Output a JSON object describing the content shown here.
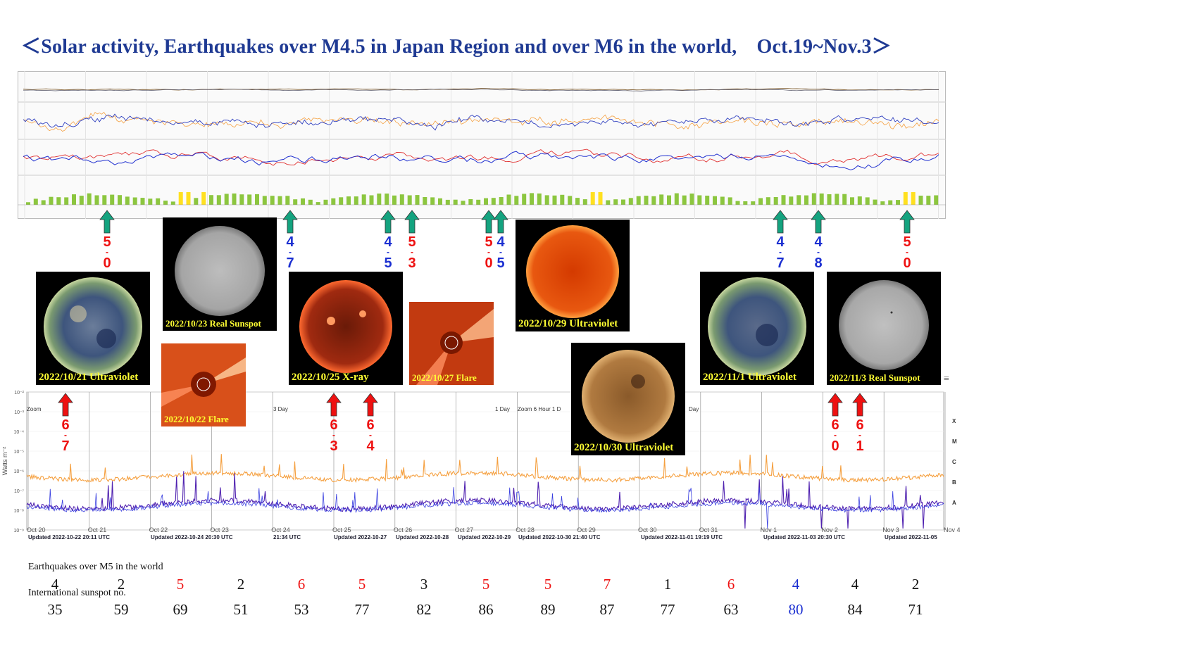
{
  "title": "＜Solar activity, Earthquakes over M4.5 in Japan Region and over M6 in the world,　Oct.19~Nov.3＞",
  "colors": {
    "title": "#1f3a93",
    "japan_arrow": "#14a37f",
    "world_arrow": "#ee1111",
    "japan_mag": "#1b2fd1",
    "world_mag": "#ee1111",
    "xray_long": "#f5a040",
    "xray_short": "#5022b0",
    "kp_green": "#8cc63f",
    "kp_yellow": "#ffe020"
  },
  "thumbnails": [
    {
      "caption": "2022/10/21 Ultraviolet",
      "type": "uv-blue"
    },
    {
      "caption": "2022/10/23 Real Sunspot",
      "type": "white"
    },
    {
      "caption": "2022/10/22 Flare",
      "type": "coronagraph"
    },
    {
      "caption": "2022/10/25 X-ray",
      "type": "xray"
    },
    {
      "caption": "2022/10/27 Flare",
      "type": "coronagraph"
    },
    {
      "caption": "2022/10/29 Ultraviolet",
      "type": "uv-red"
    },
    {
      "caption": "2022/10/30 Ultraviolet",
      "type": "uv-brown"
    },
    {
      "caption": "2022/11/1 Ultraviolet",
      "type": "uv-blue"
    },
    {
      "caption": "2022/11/3 Real Sunspot",
      "type": "white"
    }
  ],
  "japan_quakes": [
    {
      "d1": "5",
      "d2": "0",
      "color": "world"
    },
    {
      "d1": "4",
      "d2": "7",
      "color": "japan"
    },
    {
      "d1": "4",
      "d2": "5",
      "color": "japan"
    },
    {
      "d1": "5",
      "d2": "3",
      "color": "world"
    },
    {
      "d1": "5",
      "d2": "0",
      "color": "world"
    },
    {
      "d1": "4",
      "d2": "5",
      "color": "japan"
    },
    {
      "d1": "4",
      "d2": "7",
      "color": "japan"
    },
    {
      "d1": "4",
      "d2": "8",
      "color": "japan"
    },
    {
      "d1": "5",
      "d2": "0",
      "color": "world"
    }
  ],
  "world_quakes": [
    {
      "d1": "6",
      "d2": "7"
    },
    {
      "d1": "6",
      "d2": "3"
    },
    {
      "d1": "6",
      "d2": "4"
    },
    {
      "d1": "6",
      "d2": "0"
    },
    {
      "d1": "6",
      "d2": "1"
    }
  ],
  "xray_axis": {
    "ylabel": "Watts m⁻²",
    "y_ticks": [
      "10⁻²",
      "10⁻³",
      "10⁻⁴",
      "10⁻⁵",
      "10⁻⁶",
      "10⁻⁷",
      "10⁻⁸",
      "10⁻⁹"
    ],
    "class_labels": [
      "X",
      "M",
      "C",
      "B",
      "A"
    ],
    "x_ticks": [
      "Oct 20",
      "Oct 21",
      "Oct 22",
      "Oct 23",
      "Oct 24",
      "Oct 25",
      "Oct 26",
      "Oct 27",
      "Oct 28",
      "Oct 29",
      "Oct 30",
      "Oct 31",
      "Nov 1",
      "Nov 2",
      "Nov 3",
      "Nov 4"
    ],
    "updates": [
      "Updated 2022-10-22 20:11 UTC",
      "Updated 2022-10-24 20:30 UTC",
      "21:34 UTC",
      "Updated 2022-10-27",
      "Updated 2022-10-28",
      "Updated 2022-10-29",
      "Updated 2022-10-30 21:40 UTC",
      "Updated 2022-11-01 19:19 UTC",
      "Updated 2022-11-03 20:30 UTC",
      "Updated 2022-11-05"
    ],
    "corner_label": "GOES",
    "zoom_labels": [
      "Zoom",
      "3 Day",
      "1 Day",
      "Zoom 6 Hour 1 D",
      "Day"
    ]
  },
  "kp_index": {
    "yellow_positions": [
      0.168,
      0.178,
      0.188,
      0.618,
      0.626,
      0.962,
      0.97
    ]
  },
  "chart_data": {
    "type": "table",
    "rows": [
      {
        "label": "Earthquakes over M5 in the world",
        "values": [
          "4",
          "2",
          "5",
          "2",
          "6",
          "5",
          "3",
          "5",
          "5",
          "7",
          "1",
          "6",
          "4",
          "4",
          "2"
        ],
        "colors": [
          "#111111",
          "#111111",
          "#ee1111",
          "#111111",
          "#ee1111",
          "#ee1111",
          "#111111",
          "#ee1111",
          "#ee1111",
          "#ee1111",
          "#111111",
          "#ee1111",
          "#1b2fd1",
          "#111111",
          "#111111"
        ]
      },
      {
        "label": "International sunspot no.",
        "values": [
          "35",
          "59",
          "69",
          "51",
          "53",
          "77",
          "82",
          "86",
          "89",
          "87",
          "77",
          "63",
          "80",
          "84",
          "71"
        ],
        "colors": [
          "#111111",
          "#111111",
          "#111111",
          "#111111",
          "#111111",
          "#111111",
          "#111111",
          "#111111",
          "#111111",
          "#111111",
          "#111111",
          "#111111",
          "#1b2fd1",
          "#111111",
          "#111111"
        ]
      }
    ]
  }
}
